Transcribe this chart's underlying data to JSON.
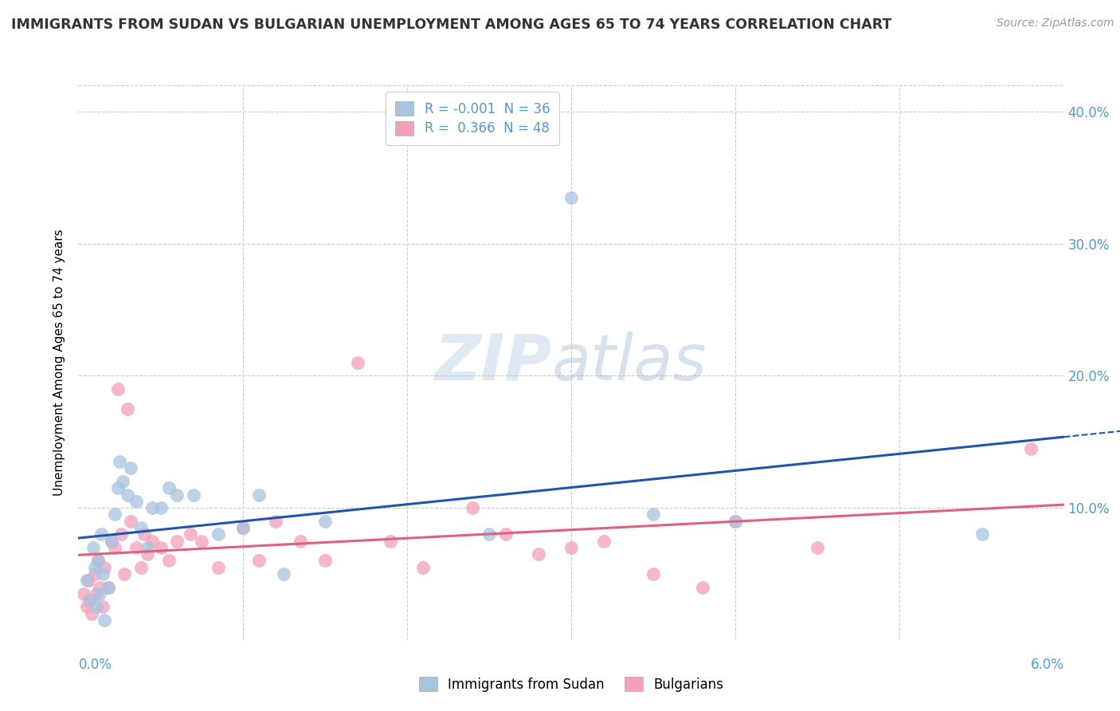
{
  "title": "IMMIGRANTS FROM SUDAN VS BULGARIAN UNEMPLOYMENT AMONG AGES 65 TO 74 YEARS CORRELATION CHART",
  "source": "Source: ZipAtlas.com",
  "ylabel": "Unemployment Among Ages 65 to 74 years",
  "xlim": [
    0.0,
    6.0
  ],
  "ylim": [
    0.0,
    42.0
  ],
  "legend1_label": "Immigrants from Sudan",
  "legend2_label": "Bulgarians",
  "r1": "-0.001",
  "n1": "36",
  "r2": "0.366",
  "n2": "48",
  "color_blue": "#a8c4e0",
  "color_pink": "#f4a0b8",
  "line_blue": "#2255aa",
  "line_pink": "#e06080",
  "axis_color": "#5599cc",
  "grid_color": "#cccccc",
  "sudan_x": [
    0.05,
    0.07,
    0.09,
    0.1,
    0.11,
    0.12,
    0.13,
    0.14,
    0.15,
    0.16,
    0.18,
    0.2,
    0.22,
    0.24,
    0.25,
    0.27,
    0.3,
    0.32,
    0.35,
    0.38,
    0.42,
    0.45,
    0.5,
    0.55,
    0.6,
    0.7,
    0.85,
    1.0,
    1.1,
    1.25,
    1.5,
    2.5,
    3.0,
    3.5,
    4.0,
    5.5
  ],
  "sudan_y": [
    4.5,
    3.0,
    7.0,
    5.5,
    2.5,
    6.0,
    3.5,
    8.0,
    5.0,
    1.5,
    4.0,
    7.5,
    9.5,
    11.5,
    13.5,
    12.0,
    11.0,
    13.0,
    10.5,
    8.5,
    7.0,
    10.0,
    10.0,
    11.5,
    11.0,
    11.0,
    8.0,
    8.5,
    11.0,
    5.0,
    9.0,
    8.0,
    33.5,
    9.5,
    9.0,
    8.0
  ],
  "bulgarian_x": [
    0.03,
    0.05,
    0.06,
    0.07,
    0.08,
    0.1,
    0.11,
    0.12,
    0.13,
    0.15,
    0.16,
    0.18,
    0.2,
    0.22,
    0.24,
    0.26,
    0.28,
    0.3,
    0.32,
    0.35,
    0.38,
    0.4,
    0.42,
    0.45,
    0.5,
    0.55,
    0.6,
    0.68,
    0.75,
    0.85,
    1.0,
    1.1,
    1.2,
    1.35,
    1.5,
    1.7,
    1.9,
    2.1,
    2.4,
    2.6,
    2.8,
    3.0,
    3.2,
    3.5,
    3.8,
    4.0,
    4.5,
    5.8
  ],
  "bulgarian_y": [
    3.5,
    2.5,
    4.5,
    3.0,
    2.0,
    5.0,
    3.5,
    6.0,
    4.0,
    2.5,
    5.5,
    4.0,
    7.5,
    7.0,
    19.0,
    8.0,
    5.0,
    17.5,
    9.0,
    7.0,
    5.5,
    8.0,
    6.5,
    7.5,
    7.0,
    6.0,
    7.5,
    8.0,
    7.5,
    5.5,
    8.5,
    6.0,
    9.0,
    7.5,
    6.0,
    21.0,
    7.5,
    5.5,
    10.0,
    8.0,
    6.5,
    7.0,
    7.5,
    5.0,
    4.0,
    9.0,
    7.0,
    14.5
  ]
}
